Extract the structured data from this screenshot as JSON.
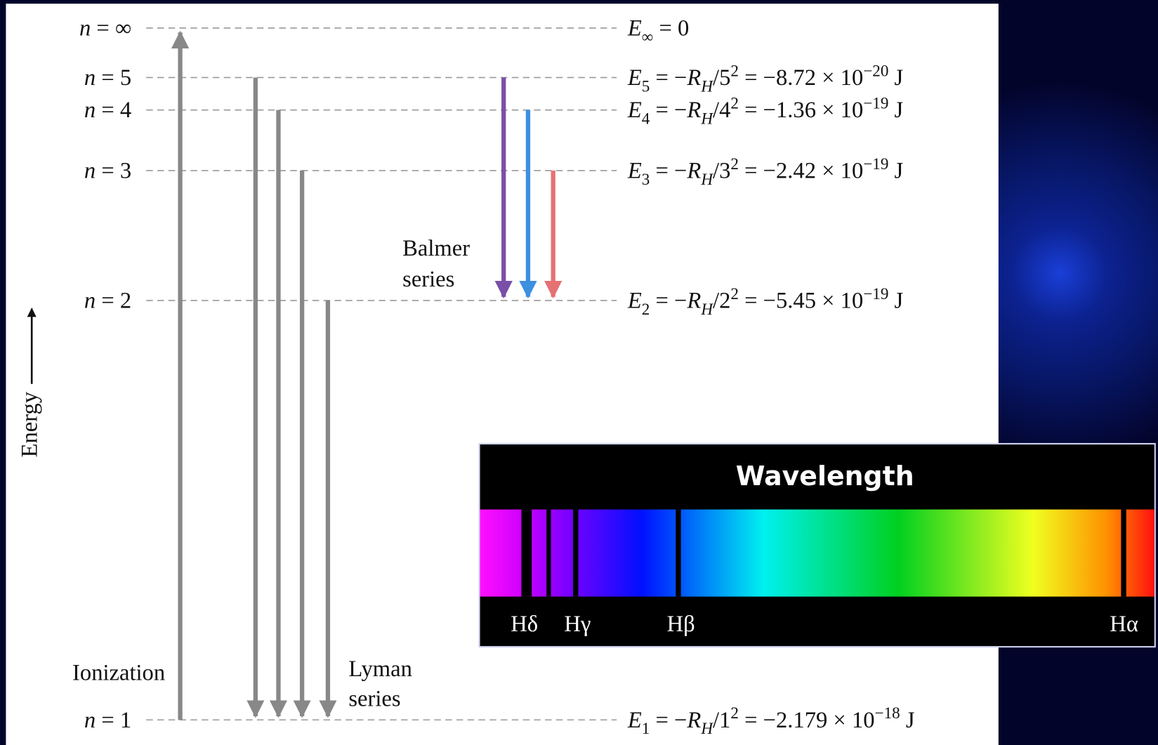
{
  "levels": [
    {
      "n": [
        {
          "i": "n"
        },
        {
          "t": " = ∞"
        }
      ],
      "energy": [
        {
          "i": "E"
        },
        {
          "sub": "∞"
        },
        {
          "t": " = 0"
        }
      ]
    },
    {
      "n": [
        {
          "i": "n"
        },
        {
          "t": " = 5"
        }
      ],
      "energy": [
        {
          "i": "E"
        },
        {
          "sub": "5"
        },
        {
          "t": " = −"
        },
        {
          "i": "R"
        },
        {
          "isub": "H"
        },
        {
          "t": "/5"
        },
        {
          "sup": "2"
        },
        {
          "t": " = −8.72 × 10"
        },
        {
          "sup": "−20"
        },
        {
          "t": " J"
        }
      ]
    },
    {
      "n": [
        {
          "i": "n"
        },
        {
          "t": " = 4"
        }
      ],
      "energy": [
        {
          "i": "E"
        },
        {
          "sub": "4"
        },
        {
          "t": " = −"
        },
        {
          "i": "R"
        },
        {
          "isub": "H"
        },
        {
          "t": "/4"
        },
        {
          "sup": "2"
        },
        {
          "t": " = −1.36 × 10"
        },
        {
          "sup": "−19"
        },
        {
          "t": " J"
        }
      ]
    },
    {
      "n": [
        {
          "i": "n"
        },
        {
          "t": " = 3"
        }
      ],
      "energy": [
        {
          "i": "E"
        },
        {
          "sub": "3"
        },
        {
          "t": " = −"
        },
        {
          "i": "R"
        },
        {
          "isub": "H"
        },
        {
          "t": "/3"
        },
        {
          "sup": "2"
        },
        {
          "t": " = −2.42 × 10"
        },
        {
          "sup": "−19"
        },
        {
          "t": " J"
        }
      ]
    },
    {
      "n": [
        {
          "i": "n"
        },
        {
          "t": " = 2"
        }
      ],
      "energy": [
        {
          "i": "E"
        },
        {
          "sub": "2"
        },
        {
          "t": " = −"
        },
        {
          "i": "R"
        },
        {
          "isub": "H"
        },
        {
          "t": "/2"
        },
        {
          "sup": "2"
        },
        {
          "t": " = −5.45 × 10"
        },
        {
          "sup": "−19"
        },
        {
          "t": " J"
        }
      ]
    },
    {
      "n": [
        {
          "i": "n"
        },
        {
          "t": " = 1"
        }
      ],
      "energy": [
        {
          "i": "E"
        },
        {
          "sub": "1"
        },
        {
          "t": " = −"
        },
        {
          "i": "R"
        },
        {
          "isub": "H"
        },
        {
          "t": "/1"
        },
        {
          "sup": "2"
        },
        {
          "t": " = −2.179 × 10"
        },
        {
          "sup": "−18"
        },
        {
          "t": " J"
        }
      ]
    }
  ],
  "energy_axis_label": "Energy",
  "ionization_label": "Ionization",
  "lyman_label": [
    "Lyman",
    "series"
  ],
  "balmer_label": [
    "Balmer",
    "series"
  ],
  "spectrum": {
    "title": "Wavelength",
    "lines": [
      "Hδ",
      "Hγ",
      "Hβ",
      "Hα"
    ]
  }
}
